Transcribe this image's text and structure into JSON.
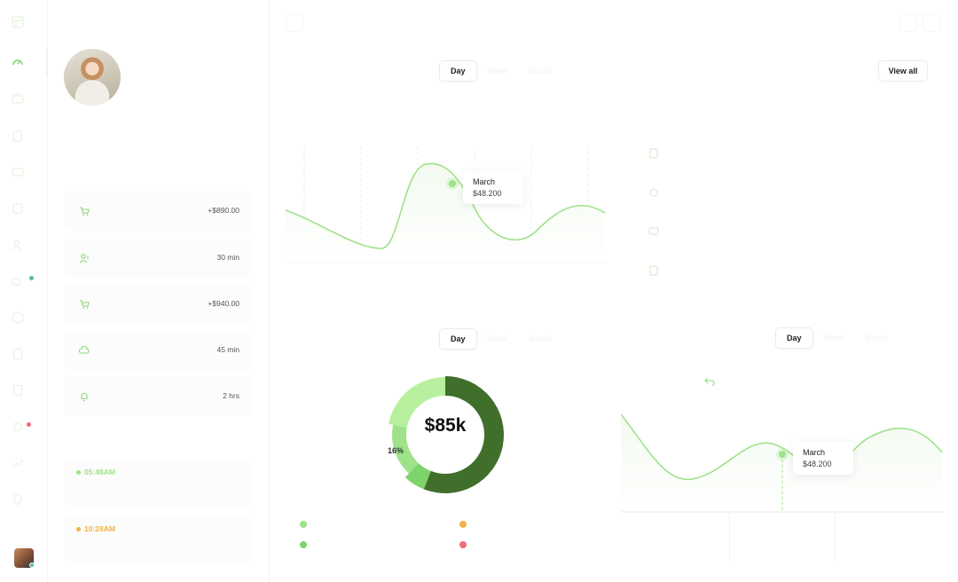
{
  "colors": {
    "accent": "#9ee28a",
    "accent_light": "#b6f09e",
    "dark_green": "#3f6f2a",
    "mid_green": "#7ed36a",
    "warning": "#f2b14a",
    "danger": "#ef6b7a",
    "online": "#52c3a0"
  },
  "rail": {
    "icons": [
      "grid-icon",
      "dashboard-icon",
      "briefcase-icon",
      "clipboard-icon",
      "card-icon",
      "document-icon",
      "user-add-icon",
      "video-icon",
      "box-icon",
      "list-icon",
      "receipt-icon",
      "settings-icon",
      "chart-icon",
      "location-icon"
    ]
  },
  "activities": [
    {
      "icon": "cart-icon",
      "value": "+$890.00"
    },
    {
      "icon": "user-icon",
      "value": "30 min"
    },
    {
      "icon": "cart-icon",
      "value": "+$940.00"
    },
    {
      "icon": "cloud-icon",
      "value": "45 min"
    },
    {
      "icon": "bell-icon",
      "value": "2 hrs"
    }
  ],
  "timeline": [
    {
      "time": "05:48AM",
      "color": "#9ee28a"
    },
    {
      "time": "10:28AM",
      "color": "#f2b14a"
    }
  ],
  "range_tabs": {
    "day": "Day",
    "week": "Week",
    "month": "Month"
  },
  "view_all": "View all",
  "line_chart_top": {
    "tooltip_month": "March",
    "tooltip_value": "$48.200"
  },
  "line_chart_bottom": {
    "tooltip_month": "March",
    "tooltip_value": "$48.200"
  },
  "chart_data": [
    {
      "type": "pie",
      "center_label": "$85k",
      "slices": [
        {
          "value": 56,
          "color": "#3f6f2a"
        },
        {
          "value": 6,
          "color": "#7ed36a"
        },
        {
          "value": 16,
          "color": "#9ee28a",
          "label": "16%"
        },
        {
          "value": 22,
          "color": "#b6f09e"
        }
      ]
    }
  ]
}
